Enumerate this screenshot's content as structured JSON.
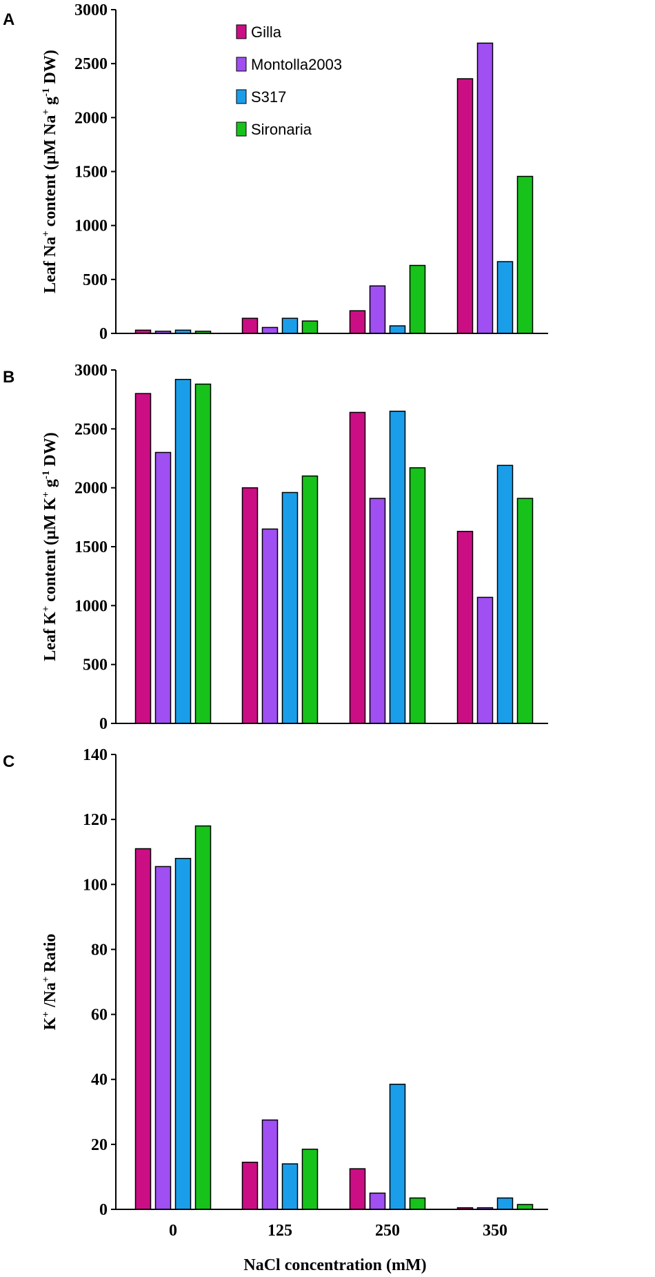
{
  "chart_data": [
    {
      "panel": "A",
      "type": "bar",
      "title": "",
      "ylabel": {
        "main": "Leaf Na",
        "sup1": "+",
        "mid": "content (µM Na",
        "sup2": "+",
        "mid2": "g",
        "sup3": "-1",
        "end": "DW)"
      },
      "categories": [
        "0",
        "125",
        "250",
        "350"
      ],
      "ylim": [
        0,
        3000
      ],
      "yticks": [
        0,
        500,
        1000,
        1500,
        2000,
        2500,
        3000
      ],
      "legend_position": "top-center",
      "series": [
        {
          "name": "Gilla",
          "color": "#cc0e84",
          "values": [
            30,
            140,
            210,
            2360
          ]
        },
        {
          "name": "Montolla2003",
          "color": "#9f4ff2",
          "values": [
            20,
            55,
            440,
            2690
          ]
        },
        {
          "name": "S317",
          "color": "#1a9eea",
          "values": [
            30,
            140,
            70,
            665
          ]
        },
        {
          "name": "Sironaria",
          "color": "#17c21b",
          "values": [
            20,
            115,
            630,
            1455
          ]
        }
      ]
    },
    {
      "panel": "B",
      "type": "bar",
      "title": "",
      "ylabel": {
        "main": "Leaf K",
        "sup1": "+",
        "mid": "content (µM K",
        "sup2": "+",
        "mid2": "g",
        "sup3": "-1",
        "end": "DW)"
      },
      "categories": [
        "0",
        "125",
        "250",
        "350"
      ],
      "ylim": [
        0,
        3000
      ],
      "yticks": [
        0,
        500,
        1000,
        1500,
        2000,
        2500,
        3000
      ],
      "series": [
        {
          "name": "Gilla",
          "color": "#cc0e84",
          "values": [
            2800,
            2000,
            2640,
            1630
          ]
        },
        {
          "name": "Montolla2003",
          "color": "#9f4ff2",
          "values": [
            2300,
            1650,
            1910,
            1070
          ]
        },
        {
          "name": "S317",
          "color": "#1a9eea",
          "values": [
            2920,
            1960,
            2650,
            2190
          ]
        },
        {
          "name": "Sironaria",
          "color": "#17c21b",
          "values": [
            2880,
            2100,
            2170,
            1910
          ]
        }
      ]
    },
    {
      "panel": "C",
      "type": "bar",
      "title": "",
      "ylabel": {
        "main": "K",
        "sup1": "+",
        "mid": "/Na",
        "sup2": "+",
        "end": "Ratio"
      },
      "xlabel": "NaCl concentration  (mM)",
      "categories": [
        "0",
        "125",
        "250",
        "350"
      ],
      "ylim": [
        0,
        140
      ],
      "yticks": [
        0,
        20,
        40,
        60,
        80,
        100,
        120,
        140
      ],
      "series": [
        {
          "name": "Gilla",
          "color": "#cc0e84",
          "values": [
            111,
            14.5,
            12.5,
            0.5
          ]
        },
        {
          "name": "Montolla2003",
          "color": "#9f4ff2",
          "values": [
            105.5,
            27.5,
            5,
            0.5
          ]
        },
        {
          "name": "S317",
          "color": "#1a9eea",
          "values": [
            108,
            14,
            38.5,
            3.5
          ]
        },
        {
          "name": "Sironaria",
          "color": "#17c21b",
          "values": [
            118,
            18.5,
            3.5,
            1.5
          ]
        }
      ]
    }
  ]
}
